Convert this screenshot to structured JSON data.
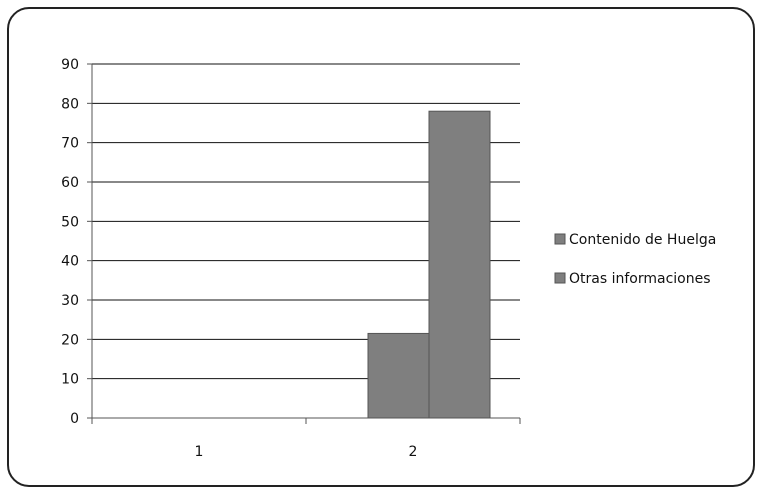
{
  "chart_data": {
    "type": "bar",
    "categories": [
      "1",
      "2"
    ],
    "series": [
      {
        "name": "Contenido de Huelga",
        "values": [
          0,
          21.5
        ]
      },
      {
        "name": "Otras informaciones",
        "values": [
          0,
          78
        ]
      }
    ],
    "title": "",
    "xlabel": "",
    "ylabel": "",
    "ylim": [
      0,
      90
    ],
    "yticks": [
      "0",
      "10",
      "20",
      "30",
      "40",
      "50",
      "60",
      "70",
      "80",
      "90"
    ],
    "grid": true,
    "legend_position": "right",
    "colors": {
      "bar": "#7f7f7f",
      "bar_edge": "#555555",
      "grid": "#111111",
      "axis": "#555555"
    }
  }
}
